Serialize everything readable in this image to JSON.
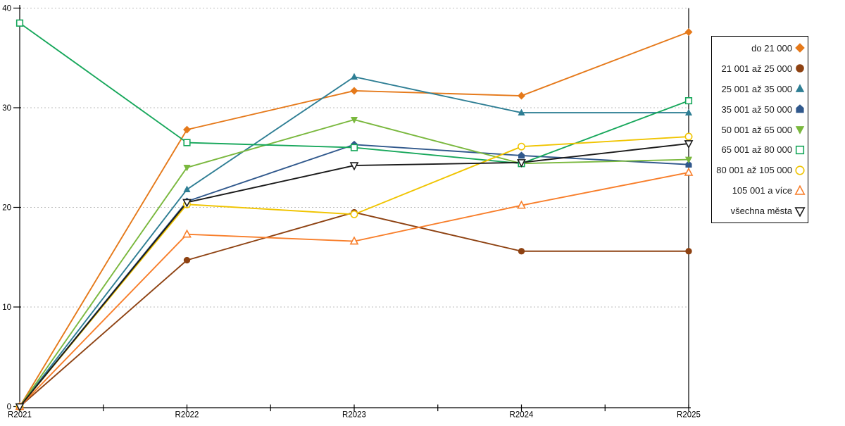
{
  "chart_data": {
    "type": "line",
    "title": "",
    "xlabel": "",
    "ylabel": "",
    "categories": [
      "R2021",
      "R2022",
      "R2023",
      "R2024",
      "R2025"
    ],
    "ylim": [
      0,
      40
    ],
    "y_ticks": [
      0,
      10,
      20,
      30,
      40
    ],
    "grid": "dashed-horizontal-gridlines",
    "legend_position": "right",
    "gridline_color": "#bdbdbd",
    "axis_color": "#000000",
    "series": [
      {
        "name": "do 21 000",
        "color": "#e5791a",
        "marker": "diamond",
        "fill": "solid",
        "values": [
          0,
          27.8,
          31.7,
          31.2,
          37.6
        ]
      },
      {
        "name": "21 001 až 25 000",
        "color": "#8e4212",
        "marker": "circle",
        "fill": "solid",
        "values": [
          0,
          14.7,
          19.5,
          15.6,
          15.6
        ]
      },
      {
        "name": "25 001 až 35 000",
        "color": "#2e7e94",
        "marker": "triangle-up",
        "fill": "solid",
        "values": [
          0,
          21.8,
          33.1,
          29.5,
          29.5
        ]
      },
      {
        "name": "35 001 až 50 000",
        "color": "#30588c",
        "marker": "pentagon",
        "fill": "solid",
        "values": [
          0,
          20.6,
          26.3,
          25.2,
          24.3
        ]
      },
      {
        "name": "50 001 až 65 000",
        "color": "#7ab83e",
        "marker": "triangle-down",
        "fill": "solid",
        "values": [
          0,
          24.0,
          28.8,
          24.4,
          24.8
        ]
      },
      {
        "name": "65 001 až 80 000",
        "color": "#17a75b",
        "marker": "square",
        "fill": "open",
        "values": [
          38.5,
          26.5,
          26.0,
          24.4,
          30.7
        ]
      },
      {
        "name": "80 001 až 105 000",
        "color": "#f0c400",
        "marker": "circle",
        "fill": "open",
        "values": [
          0,
          20.3,
          19.3,
          26.1,
          27.1
        ]
      },
      {
        "name": "105 001 a více",
        "color": "#f87e2a",
        "marker": "triangle-up",
        "fill": "open",
        "values": [
          0,
          17.3,
          16.6,
          20.2,
          23.5
        ]
      },
      {
        "name": "všechna města",
        "color": "#1a1a1a",
        "marker": "triangle-down",
        "fill": "open",
        "values": [
          0,
          20.5,
          24.2,
          24.5,
          26.4
        ]
      }
    ]
  }
}
